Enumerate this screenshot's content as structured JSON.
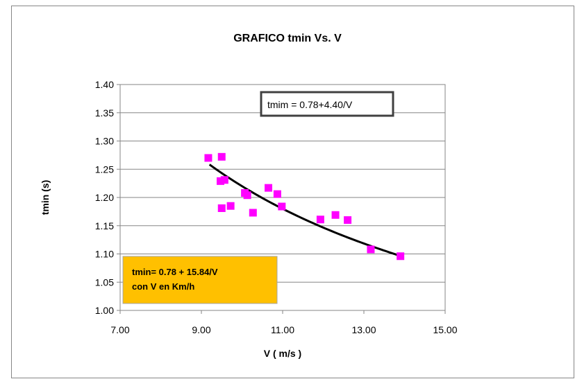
{
  "chart_data": {
    "type": "scatter",
    "title": "GRAFICO tmin Vs. V",
    "xlabel": "V ( m/s )",
    "ylabel": "tmin (s)",
    "xlim": [
      7.0,
      15.0
    ],
    "ylim": [
      1.0,
      1.4
    ],
    "x_ticks": [
      "7.00",
      "9.00",
      "11.00",
      "13.00",
      "15.00"
    ],
    "y_ticks": [
      "1.00",
      "1.05",
      "1.10",
      "1.15",
      "1.20",
      "1.25",
      "1.30",
      "1.35",
      "1.40"
    ],
    "grid": "horizontal",
    "legend": "none",
    "series": [
      {
        "type": "scatter",
        "color": "#ff00ff",
        "marker": "square",
        "points": [
          {
            "x": 9.17,
            "y": 1.27
          },
          {
            "x": 9.5,
            "y": 1.272
          },
          {
            "x": 9.47,
            "y": 1.229
          },
          {
            "x": 9.57,
            "y": 1.231
          },
          {
            "x": 9.5,
            "y": 1.181
          },
          {
            "x": 9.72,
            "y": 1.185
          },
          {
            "x": 10.07,
            "y": 1.208
          },
          {
            "x": 10.13,
            "y": 1.204
          },
          {
            "x": 10.27,
            "y": 1.173
          },
          {
            "x": 10.65,
            "y": 1.217
          },
          {
            "x": 10.87,
            "y": 1.206
          },
          {
            "x": 10.98,
            "y": 1.184
          },
          {
            "x": 11.93,
            "y": 1.161
          },
          {
            "x": 12.3,
            "y": 1.169
          },
          {
            "x": 12.6,
            "y": 1.16
          },
          {
            "x": 13.17,
            "y": 1.108
          },
          {
            "x": 13.9,
            "y": 1.096
          }
        ]
      },
      {
        "type": "fit-curve",
        "color": "#000000",
        "formula": "0.78+4.40/V",
        "a": 0.78,
        "b": 4.4,
        "x_from": 9.2,
        "x_to": 13.95
      }
    ],
    "annotations": [
      {
        "text": "tmim = 0.78+4.40/V",
        "style": "boxed-white"
      },
      {
        "lines": [
          "tmin= 0.78  + 15.84/V",
          "con V en Km/h"
        ],
        "style": "orange-box",
        "fill": "#ffc000"
      }
    ]
  }
}
